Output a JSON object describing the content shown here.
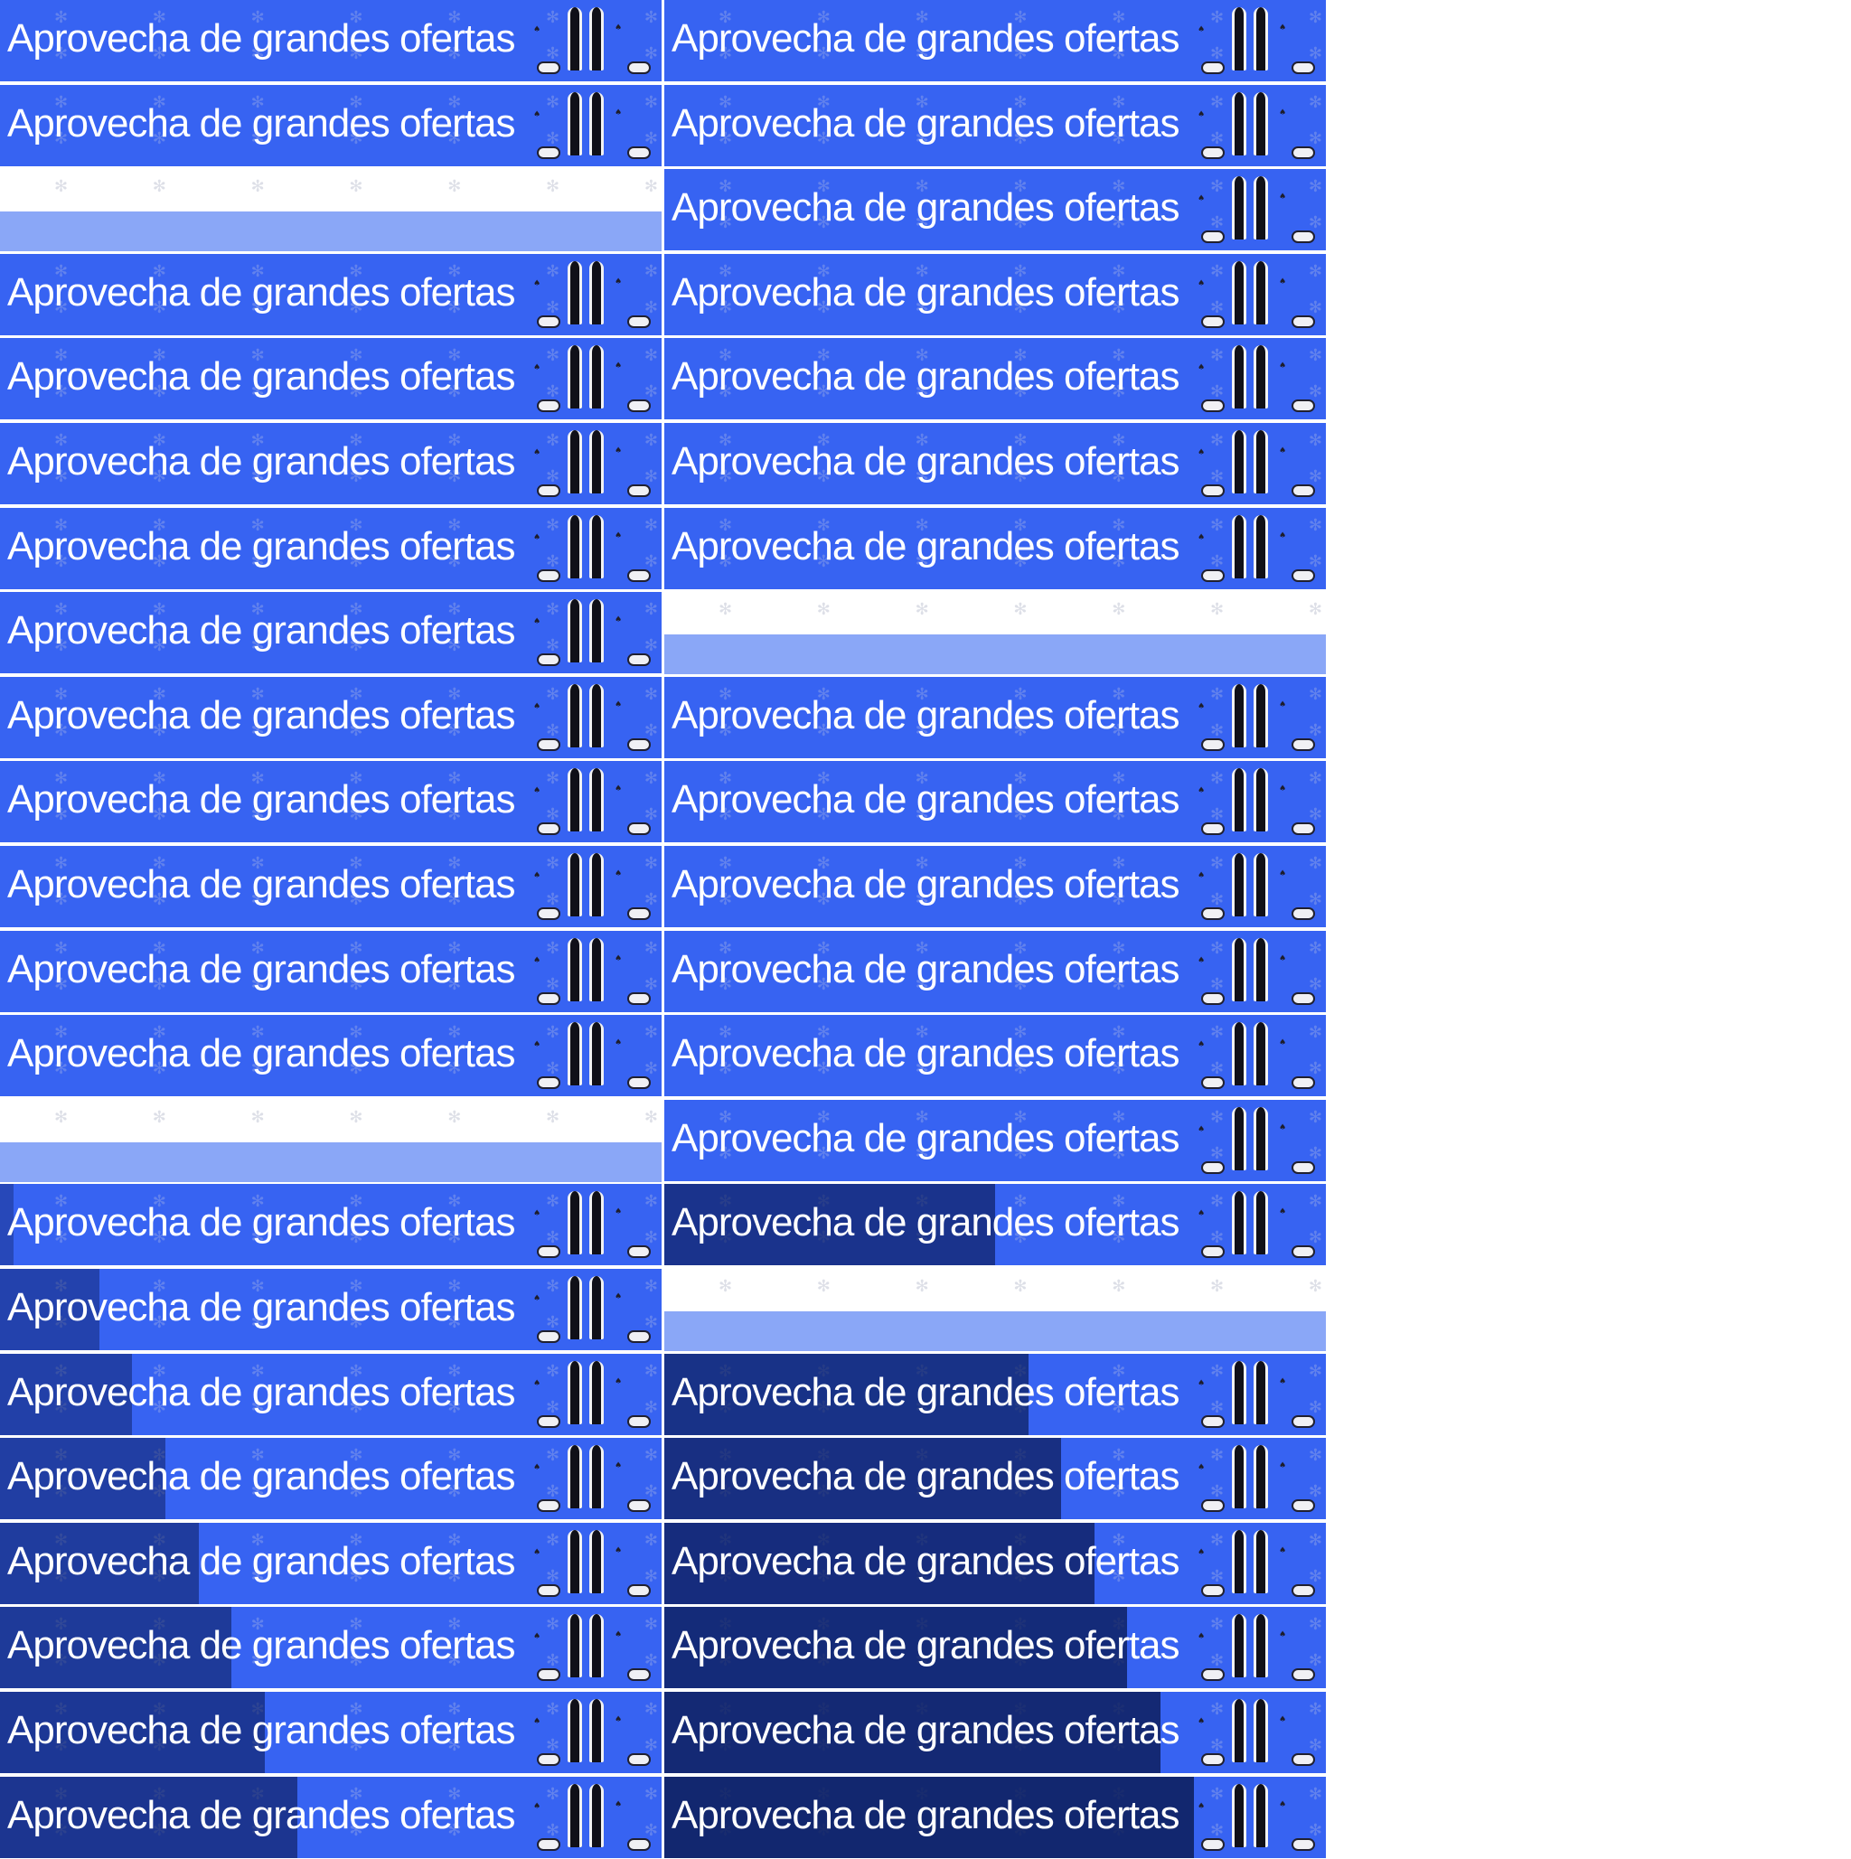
{
  "banner": {
    "text": "Aprovecha de grandes ofertas",
    "brand_icon": "playstation-logo-icon",
    "background_color": "#3763f2"
  },
  "left_column": [
    "banner",
    "banner",
    "gap",
    "banner",
    "banner",
    "banner",
    "banner",
    "banner",
    "banner",
    "banner",
    "banner",
    "banner",
    "banner",
    "gap",
    "banner",
    "banner",
    "banner",
    "banner",
    "banner",
    "banner",
    "banner",
    "banner"
  ],
  "right_column": [
    "banner",
    "banner",
    "banner",
    "banner",
    "banner",
    "banner",
    "banner",
    "gap",
    "banner",
    "banner",
    "banner",
    "banner",
    "banner",
    "banner",
    "banner",
    "gap",
    "banner",
    "banner",
    "banner",
    "banner",
    "banner",
    "banner"
  ],
  "left_shade": [
    0,
    0,
    0,
    0,
    0,
    0,
    0,
    0,
    0,
    0,
    0,
    0,
    0,
    0,
    0.02,
    0.15,
    0.2,
    0.25,
    0.3,
    0.35,
    0.4,
    0.45
  ],
  "right_shade": [
    0,
    0,
    0,
    0,
    0,
    0,
    0,
    0,
    0,
    0,
    0,
    0,
    0,
    0,
    0.5,
    0,
    0.55,
    0.6,
    0.65,
    0.7,
    0.75,
    0.8
  ]
}
